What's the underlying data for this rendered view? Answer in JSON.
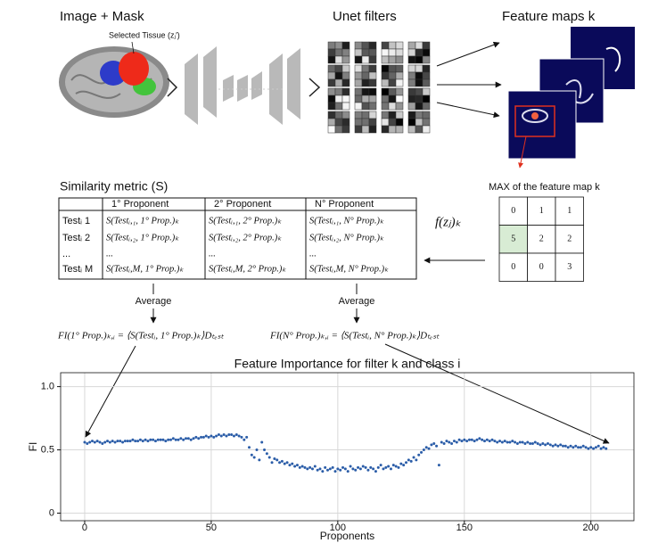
{
  "panels": {
    "image_mask": {
      "title": "Image + Mask",
      "label": "Selected Tissue (zⱼ′)"
    },
    "unet": {
      "title": "Unet filters"
    },
    "feature_maps": {
      "title": "Feature maps k"
    }
  },
  "similarity": {
    "title": "Similarity metric (S)",
    "table": {
      "header": [
        "1° Proponent",
        "2° Proponent",
        "N° Proponent"
      ],
      "rows": [
        [
          "Testᵢ 1",
          "S(Testᵢ,₁, 1° Prop.)ₖ",
          "S(Testᵢ,₁, 2° Prop.)ₖ",
          "S(Testᵢ,₁, N° Prop.)ₖ"
        ],
        [
          "Testᵢ 2",
          "S(Testᵢ,₂, 1° Prop.)ₖ",
          "S(Testᵢ,₂, 2° Prop.)ₖ",
          "S(Testᵢ,₂, N° Prop.)ₖ"
        ],
        [
          "...",
          "...",
          "...",
          "..."
        ],
        [
          "Testᵢ M",
          "S(Testᵢ,M, 1° Prop.)ₖ",
          "S(Testᵢ,M, 2° Prop.)ₖ",
          "S(Testᵢ,M, N° Prop.)ₖ"
        ]
      ]
    }
  },
  "max_map": {
    "title": "MAX of the feature map k",
    "grid": [
      [
        0,
        1,
        1
      ],
      [
        5,
        2,
        2
      ],
      [
        0,
        0,
        3
      ]
    ]
  },
  "function_label": "f(zⱼ)ₖ",
  "averages": [
    "Average",
    "Average"
  ],
  "formulas": [
    "FI(1° Prop.)ₖ,ᵢ = ⟨S(Testᵢ, 1° Prop.)ₖ⟩Dₜₑₛₜ",
    "FI(N° Prop.)ₖ,ᵢ = ⟨S(Testᵢ, N° Prop.)ₖ⟩Dₜₑₛₜ"
  ],
  "chart_data": {
    "type": "scatter",
    "title": "Feature Importance for filter k and class i",
    "xlabel": "Proponents",
    "ylabel": "FI",
    "color": "#2b5da8",
    "grid": true,
    "xlim": [
      -9.5,
      217
    ],
    "ylim": [
      -0.06,
      1.11
    ],
    "xticks": [
      0,
      50,
      100,
      150,
      200
    ],
    "yticks": [
      0,
      0.5,
      {
        "value": 1,
        "label": "1.0"
      }
    ],
    "x": [
      0,
      1,
      2,
      3,
      4,
      5,
      6,
      7,
      8,
      9,
      10,
      11,
      12,
      13,
      14,
      15,
      16,
      17,
      18,
      19,
      20,
      21,
      22,
      23,
      24,
      25,
      26,
      27,
      28,
      29,
      30,
      31,
      32,
      33,
      34,
      35,
      36,
      37,
      38,
      39,
      40,
      41,
      42,
      43,
      44,
      45,
      46,
      47,
      48,
      49,
      50,
      51,
      52,
      53,
      54,
      55,
      56,
      57,
      58,
      59,
      60,
      61,
      62,
      63,
      64,
      65,
      66,
      67,
      68,
      69,
      70,
      71,
      72,
      73,
      74,
      75,
      76,
      77,
      78,
      79,
      80,
      81,
      82,
      83,
      84,
      85,
      86,
      87,
      88,
      89,
      90,
      91,
      92,
      93,
      94,
      95,
      96,
      97,
      98,
      99,
      100,
      101,
      102,
      103,
      104,
      105,
      106,
      107,
      108,
      109,
      110,
      111,
      112,
      113,
      114,
      115,
      116,
      117,
      118,
      119,
      120,
      121,
      122,
      123,
      124,
      125,
      126,
      127,
      128,
      129,
      130,
      131,
      132,
      133,
      134,
      135,
      136,
      137,
      138,
      139,
      140,
      141,
      142,
      143,
      144,
      145,
      146,
      147,
      148,
      149,
      150,
      151,
      152,
      153,
      154,
      155,
      156,
      157,
      158,
      159,
      160,
      161,
      162,
      163,
      164,
      165,
      166,
      167,
      168,
      169,
      170,
      171,
      172,
      173,
      174,
      175,
      176,
      177,
      178,
      179,
      180,
      181,
      182,
      183,
      184,
      185,
      186,
      187,
      188,
      189,
      190,
      191,
      192,
      193,
      194,
      195,
      196,
      197,
      198,
      199,
      200,
      201,
      202,
      203,
      204,
      205,
      206
    ],
    "values": [
      0.56,
      0.55,
      0.56,
      0.57,
      0.56,
      0.57,
      0.56,
      0.55,
      0.56,
      0.57,
      0.56,
      0.57,
      0.56,
      0.57,
      0.57,
      0.56,
      0.57,
      0.57,
      0.57,
      0.58,
      0.57,
      0.57,
      0.58,
      0.57,
      0.58,
      0.57,
      0.58,
      0.58,
      0.57,
      0.58,
      0.58,
      0.58,
      0.57,
      0.58,
      0.58,
      0.59,
      0.58,
      0.58,
      0.59,
      0.58,
      0.59,
      0.59,
      0.58,
      0.59,
      0.6,
      0.59,
      0.6,
      0.6,
      0.61,
      0.6,
      0.61,
      0.6,
      0.61,
      0.62,
      0.61,
      0.62,
      0.61,
      0.62,
      0.62,
      0.61,
      0.62,
      0.61,
      0.6,
      0.58,
      0.6,
      0.52,
      0.46,
      0.44,
      0.5,
      0.42,
      0.56,
      0.5,
      0.47,
      0.44,
      0.4,
      0.43,
      0.42,
      0.4,
      0.41,
      0.39,
      0.4,
      0.38,
      0.39,
      0.37,
      0.38,
      0.36,
      0.37,
      0.36,
      0.35,
      0.36,
      0.35,
      0.37,
      0.34,
      0.35,
      0.33,
      0.36,
      0.34,
      0.35,
      0.36,
      0.33,
      0.35,
      0.34,
      0.36,
      0.35,
      0.33,
      0.37,
      0.35,
      0.34,
      0.36,
      0.35,
      0.37,
      0.36,
      0.34,
      0.36,
      0.35,
      0.33,
      0.36,
      0.38,
      0.35,
      0.36,
      0.37,
      0.35,
      0.38,
      0.37,
      0.36,
      0.39,
      0.38,
      0.4,
      0.42,
      0.41,
      0.44,
      0.42,
      0.46,
      0.48,
      0.5,
      0.52,
      0.51,
      0.54,
      0.55,
      0.53,
      0.38,
      0.56,
      0.55,
      0.57,
      0.56,
      0.55,
      0.57,
      0.56,
      0.58,
      0.57,
      0.58,
      0.57,
      0.58,
      0.58,
      0.57,
      0.58,
      0.59,
      0.58,
      0.57,
      0.58,
      0.57,
      0.58,
      0.57,
      0.56,
      0.57,
      0.56,
      0.57,
      0.56,
      0.56,
      0.57,
      0.56,
      0.55,
      0.56,
      0.56,
      0.55,
      0.56,
      0.55,
      0.55,
      0.56,
      0.55,
      0.54,
      0.55,
      0.54,
      0.55,
      0.54,
      0.53,
      0.54,
      0.53,
      0.54,
      0.53,
      0.53,
      0.52,
      0.53,
      0.52,
      0.53,
      0.52,
      0.52,
      0.53,
      0.52,
      0.51,
      0.52,
      0.51,
      0.52,
      0.53,
      0.51,
      0.52,
      0.51
    ]
  }
}
